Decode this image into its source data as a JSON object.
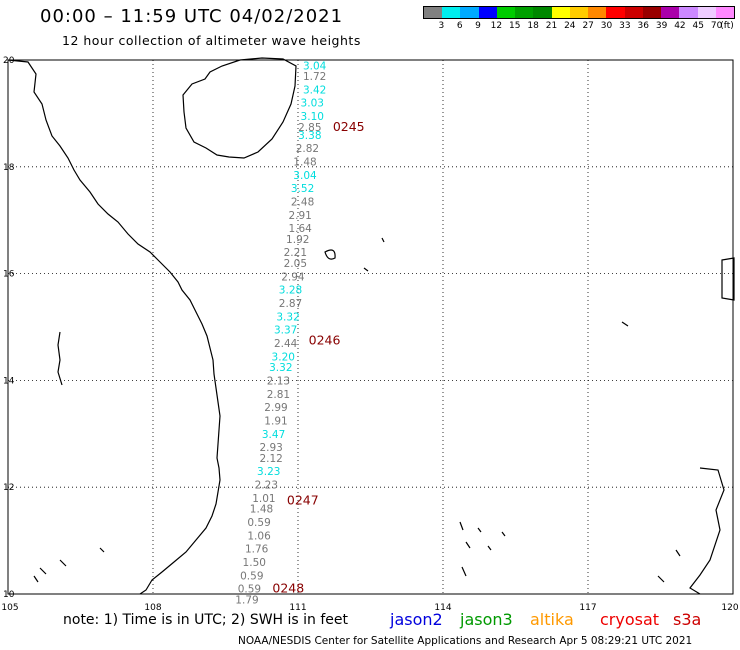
{
  "header": {
    "title": "00:00 – 11:59 UTC 04/02/2021",
    "subtitle": "12 hour collection of altimeter wave heights"
  },
  "legend": {
    "colors": [
      "#808080",
      "#00eeee",
      "#00aaff",
      "#0000ff",
      "#00cc00",
      "#00a000",
      "#008800",
      "#ffff00",
      "#ffcc00",
      "#ff8800",
      "#ff0000",
      "#cc0000",
      "#990000",
      "#aa00aa",
      "#cc88ff",
      "#eeccff",
      "#ff88ff"
    ],
    "labels": [
      "3",
      "6",
      "9",
      "12",
      "15",
      "18",
      "21",
      "24",
      "27",
      "30",
      "33",
      "36",
      "39",
      "42",
      "45",
      "70",
      "(ft)"
    ]
  },
  "axes": {
    "lon_labels": [
      "105",
      "108",
      "111",
      "114",
      "117",
      "120"
    ],
    "lat_labels": [
      "20",
      "18",
      "16",
      "14",
      "12",
      "10"
    ]
  },
  "chart_data": {
    "type": "scatter",
    "xlim": [
      105,
      120
    ],
    "ylim": [
      10,
      20
    ],
    "grid": true,
    "track_labels": [
      {
        "text": "0245",
        "lat": 18.75
      },
      {
        "text": "0246",
        "lat": 14.75
      },
      {
        "text": "0247",
        "lat": 11.75
      },
      {
        "text": "0248",
        "lat": 10.1
      }
    ],
    "points": [
      {
        "lat": 19.9,
        "lon": 111.2,
        "swh": "3.04",
        "sat": "jason2"
      },
      {
        "lat": 19.7,
        "lon": 111.2,
        "swh": "1.72",
        "sat": "other"
      },
      {
        "lat": 19.45,
        "lon": 111.2,
        "swh": "3.42",
        "sat": "jason2"
      },
      {
        "lat": 19.2,
        "lon": 111.15,
        "swh": "3.03",
        "sat": "jason2"
      },
      {
        "lat": 18.95,
        "lon": 111.15,
        "swh": "3.10",
        "sat": "jason2"
      },
      {
        "lat": 18.75,
        "lon": 111.1,
        "swh": "2.85",
        "sat": "other"
      },
      {
        "lat": 18.6,
        "lon": 111.1,
        "swh": "3.38",
        "sat": "jason2"
      },
      {
        "lat": 18.35,
        "lon": 111.05,
        "swh": "2.82",
        "sat": "other"
      },
      {
        "lat": 18.1,
        "lon": 111.0,
        "swh": "1.48",
        "sat": "other"
      },
      {
        "lat": 17.85,
        "lon": 111.0,
        "swh": "3.04",
        "sat": "jason2"
      },
      {
        "lat": 17.6,
        "lon": 110.95,
        "swh": "3.52",
        "sat": "jason2"
      },
      {
        "lat": 17.35,
        "lon": 110.95,
        "swh": "2.48",
        "sat": "other"
      },
      {
        "lat": 17.1,
        "lon": 110.9,
        "swh": "2.91",
        "sat": "other"
      },
      {
        "lat": 16.85,
        "lon": 110.9,
        "swh": "1.64",
        "sat": "other"
      },
      {
        "lat": 16.65,
        "lon": 110.85,
        "swh": "1.92",
        "sat": "other"
      },
      {
        "lat": 16.4,
        "lon": 110.8,
        "swh": "2.21",
        "sat": "other"
      },
      {
        "lat": 16.2,
        "lon": 110.8,
        "swh": "2.05",
        "sat": "other"
      },
      {
        "lat": 15.95,
        "lon": 110.75,
        "swh": "2.94",
        "sat": "other"
      },
      {
        "lat": 15.7,
        "lon": 110.7,
        "swh": "3.28",
        "sat": "jason2"
      },
      {
        "lat": 15.45,
        "lon": 110.7,
        "swh": "2.87",
        "sat": "other"
      },
      {
        "lat": 15.2,
        "lon": 110.65,
        "swh": "3.32",
        "sat": "jason2"
      },
      {
        "lat": 14.95,
        "lon": 110.6,
        "swh": "3.37",
        "sat": "jason2"
      },
      {
        "lat": 14.7,
        "lon": 110.6,
        "swh": "2.44",
        "sat": "other"
      },
      {
        "lat": 14.45,
        "lon": 110.55,
        "swh": "3.20",
        "sat": "jason2"
      },
      {
        "lat": 14.25,
        "lon": 110.5,
        "swh": "3.32",
        "sat": "jason2"
      },
      {
        "lat": 14.0,
        "lon": 110.45,
        "swh": "2.13",
        "sat": "other"
      },
      {
        "lat": 13.75,
        "lon": 110.45,
        "swh": "2.81",
        "sat": "other"
      },
      {
        "lat": 13.5,
        "lon": 110.4,
        "swh": "2.99",
        "sat": "other"
      },
      {
        "lat": 13.25,
        "lon": 110.4,
        "swh": "1.91",
        "sat": "other"
      },
      {
        "lat": 13.0,
        "lon": 110.35,
        "swh": "3.47",
        "sat": "jason2"
      },
      {
        "lat": 12.75,
        "lon": 110.3,
        "swh": "2.93",
        "sat": "other"
      },
      {
        "lat": 12.55,
        "lon": 110.3,
        "swh": "2.12",
        "sat": "other"
      },
      {
        "lat": 12.3,
        "lon": 110.25,
        "swh": "3.23",
        "sat": "jason2"
      },
      {
        "lat": 12.05,
        "lon": 110.2,
        "swh": "2.23",
        "sat": "other"
      },
      {
        "lat": 11.8,
        "lon": 110.15,
        "swh": "1.01",
        "sat": "other"
      },
      {
        "lat": 11.6,
        "lon": 110.1,
        "swh": "1.48",
        "sat": "other"
      },
      {
        "lat": 11.35,
        "lon": 110.05,
        "swh": "0.59",
        "sat": "other"
      },
      {
        "lat": 11.1,
        "lon": 110.05,
        "swh": "1.06",
        "sat": "other"
      },
      {
        "lat": 10.85,
        "lon": 110.0,
        "swh": "1.76",
        "sat": "other"
      },
      {
        "lat": 10.6,
        "lon": 109.95,
        "swh": "1.50",
        "sat": "other"
      },
      {
        "lat": 10.35,
        "lon": 109.9,
        "swh": "0.59",
        "sat": "other"
      },
      {
        "lat": 10.1,
        "lon": 109.85,
        "swh": "0.59",
        "sat": "other"
      },
      {
        "lat": 9.9,
        "lon": 109.8,
        "swh": "1.79",
        "sat": "other"
      }
    ]
  },
  "footer": {
    "note": "note:  1) Time is in UTC;  2) SWH is in feet",
    "satellites": [
      {
        "name": "jason2",
        "color": "#0000dd"
      },
      {
        "name": "jason3",
        "color": "#009900"
      },
      {
        "name": "altika",
        "color": "#ff9900"
      },
      {
        "name": "cryosat",
        "color": "#ee0000"
      },
      {
        "name": "s3a",
        "color": "#cc0000"
      }
    ],
    "credit": "NOAA/NESDIS Center for Satellite Applications and Research    Apr  5 08:29:21 UTC 2021"
  },
  "colors": {
    "track_label": "#880000",
    "jason2_point": "#00dddd",
    "other_point": "#777777"
  }
}
